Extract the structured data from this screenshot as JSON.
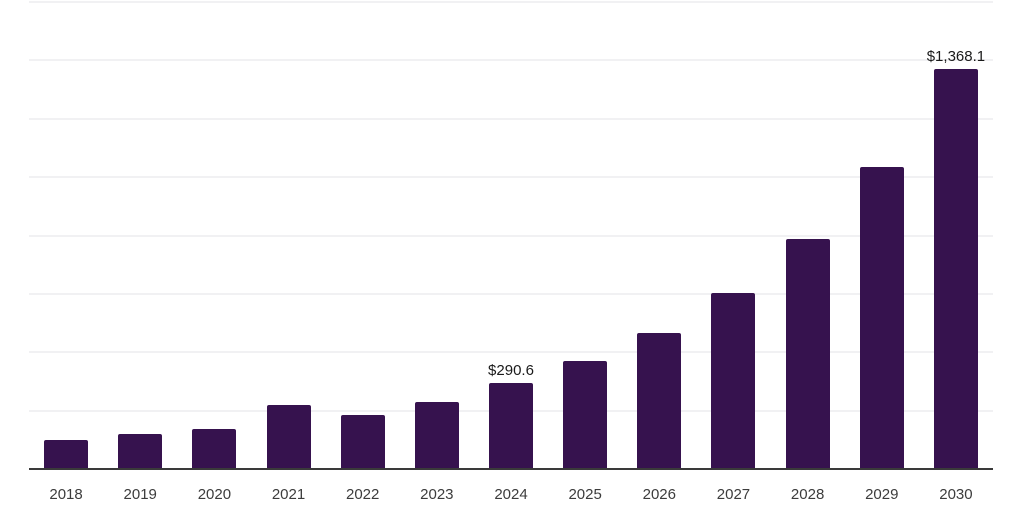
{
  "chart_data": {
    "type": "bar",
    "title": "",
    "xlabel": "",
    "ylabel": "",
    "categories": [
      "2018",
      "2019",
      "2020",
      "2021",
      "2022",
      "2023",
      "2024",
      "2025",
      "2026",
      "2027",
      "2028",
      "2029",
      "2030"
    ],
    "values": [
      97.5,
      117.0,
      135.2,
      216.4,
      181.0,
      227.6,
      290.6,
      365.5,
      462.7,
      599.6,
      784.5,
      1033.0,
      1368.1
    ],
    "data_labels": [
      {
        "category": "2024",
        "text": "$290.6"
      },
      {
        "category": "2030",
        "text": "$1,368.1"
      }
    ],
    "ylim": [
      0,
      1600
    ],
    "gridline_step": 200,
    "grid": true,
    "legend": false,
    "y_tick_labels_visible": false,
    "colors": {
      "bar": "#36124e",
      "gridline": "#f1f1f3",
      "axis_line": "#3a3a3a",
      "data_label": "#1a1a1a",
      "tick_label": "#3c3c3c",
      "background": "#ffffff"
    }
  }
}
